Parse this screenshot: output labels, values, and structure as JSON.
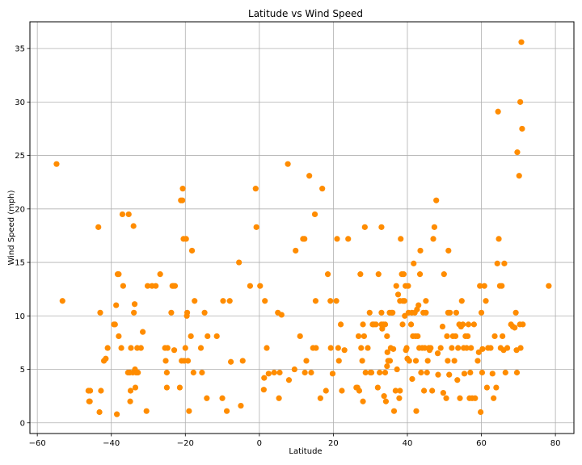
{
  "chart_data": {
    "type": "scatter",
    "title": "Latitude vs Wind Speed",
    "xlabel": "Latitude",
    "ylabel": "Wind Speed (mph)",
    "xlim": [
      -62,
      85
    ],
    "ylim": [
      -1,
      37.5
    ],
    "xticks": [
      -60,
      -40,
      -20,
      0,
      20,
      40,
      60,
      80
    ],
    "yticks": [
      0,
      5,
      10,
      15,
      20,
      25,
      30,
      35
    ],
    "grid": true,
    "marker_color": "#ff8c00",
    "points": [
      [
        -54.8,
        24.2
      ],
      [
        -53.2,
        11.4
      ],
      [
        -46.2,
        3.0
      ],
      [
        -46.0,
        2.0
      ],
      [
        -45.8,
        2.0
      ],
      [
        -45.7,
        3.0
      ],
      [
        -43.5,
        18.3
      ],
      [
        -43.2,
        1.0
      ],
      [
        -43.0,
        10.3
      ],
      [
        -42.8,
        3.0
      ],
      [
        -42.0,
        5.8
      ],
      [
        -41.5,
        6.0
      ],
      [
        -41.0,
        7.0
      ],
      [
        -39.3,
        9.2
      ],
      [
        -39.0,
        9.2
      ],
      [
        -38.7,
        11.0
      ],
      [
        -38.5,
        0.8
      ],
      [
        -38.3,
        13.9
      ],
      [
        -38.0,
        13.9
      ],
      [
        -38.0,
        8.1
      ],
      [
        -37.3,
        7.0
      ],
      [
        -37.0,
        19.5
      ],
      [
        -36.8,
        12.8
      ],
      [
        -35.5,
        4.7
      ],
      [
        -35.3,
        19.5
      ],
      [
        -35.0,
        4.7
      ],
      [
        -34.9,
        2.0
      ],
      [
        -34.8,
        3.0
      ],
      [
        -34.7,
        7.0
      ],
      [
        -34.2,
        4.7
      ],
      [
        -34.0,
        18.4
      ],
      [
        -33.9,
        10.3
      ],
      [
        -33.7,
        11.1
      ],
      [
        -33.6,
        5.0
      ],
      [
        -33.5,
        3.3
      ],
      [
        -33.3,
        4.7
      ],
      [
        -33.0,
        7.0
      ],
      [
        -32.8,
        4.7
      ],
      [
        -32.0,
        7.0
      ],
      [
        -31.5,
        8.5
      ],
      [
        -30.5,
        1.1
      ],
      [
        -30.2,
        12.8
      ],
      [
        -29.0,
        12.8
      ],
      [
        -28.0,
        12.8
      ],
      [
        -26.8,
        13.9
      ],
      [
        -25.5,
        7.0
      ],
      [
        -25.3,
        5.8
      ],
      [
        -25.0,
        4.7
      ],
      [
        -25.0,
        3.3
      ],
      [
        -24.8,
        7.0
      ],
      [
        -23.8,
        10.3
      ],
      [
        -23.5,
        12.8
      ],
      [
        -23.2,
        12.8
      ],
      [
        -23.0,
        6.8
      ],
      [
        -22.8,
        12.8
      ],
      [
        -21.5,
        3.3
      ],
      [
        -21.2,
        20.8
      ],
      [
        -21.0,
        5.8
      ],
      [
        -20.8,
        20.8
      ],
      [
        -20.7,
        21.9
      ],
      [
        -20.5,
        17.2
      ],
      [
        -20.3,
        5.8
      ],
      [
        -20.0,
        7.0
      ],
      [
        -19.8,
        17.2
      ],
      [
        -19.6,
        10.0
      ],
      [
        -19.5,
        10.3
      ],
      [
        -19.3,
        5.8
      ],
      [
        -19.0,
        1.1
      ],
      [
        -18.5,
        8.1
      ],
      [
        -18.2,
        16.1
      ],
      [
        -17.8,
        4.7
      ],
      [
        -17.5,
        11.4
      ],
      [
        -15.8,
        7.0
      ],
      [
        -15.5,
        4.7
      ],
      [
        -14.8,
        10.3
      ],
      [
        -14.2,
        2.3
      ],
      [
        -14.0,
        8.1
      ],
      [
        -11.5,
        8.1
      ],
      [
        -10.0,
        2.3
      ],
      [
        -9.8,
        11.4
      ],
      [
        -8.8,
        1.1
      ],
      [
        -8.0,
        11.4
      ],
      [
        -7.7,
        5.7
      ],
      [
        -5.5,
        15.0
      ],
      [
        -5.0,
        1.6
      ],
      [
        -4.5,
        5.8
      ],
      [
        -2.5,
        12.8
      ],
      [
        -1.0,
        21.9
      ],
      [
        -0.8,
        18.3
      ],
      [
        0.2,
        12.8
      ],
      [
        1.2,
        3.1
      ],
      [
        1.3,
        4.2
      ],
      [
        1.5,
        11.4
      ],
      [
        2.0,
        7.0
      ],
      [
        2.5,
        4.6
      ],
      [
        4.0,
        4.7
      ],
      [
        5.0,
        10.3
      ],
      [
        5.3,
        2.3
      ],
      [
        5.5,
        4.7
      ],
      [
        6.0,
        10.1
      ],
      [
        7.7,
        24.2
      ],
      [
        8.0,
        4.0
      ],
      [
        9.5,
        5.0
      ],
      [
        9.8,
        16.1
      ],
      [
        11.0,
        8.1
      ],
      [
        11.8,
        17.2
      ],
      [
        12.2,
        17.2
      ],
      [
        12.3,
        4.7
      ],
      [
        12.7,
        5.8
      ],
      [
        13.5,
        23.1
      ],
      [
        14.0,
        4.7
      ],
      [
        14.5,
        7.0
      ],
      [
        15.0,
        19.5
      ],
      [
        15.2,
        11.4
      ],
      [
        15.3,
        7.0
      ],
      [
        16.5,
        2.3
      ],
      [
        17.0,
        21.9
      ],
      [
        18.0,
        3.0
      ],
      [
        18.5,
        13.9
      ],
      [
        19.2,
        11.4
      ],
      [
        19.3,
        7.0
      ],
      [
        19.8,
        4.6
      ],
      [
        20.8,
        11.4
      ],
      [
        21.0,
        17.2
      ],
      [
        21.3,
        7.0
      ],
      [
        21.5,
        5.8
      ],
      [
        22.0,
        9.2
      ],
      [
        22.3,
        3.0
      ],
      [
        23.0,
        6.8
      ],
      [
        24.0,
        17.2
      ],
      [
        26.2,
        3.3
      ],
      [
        26.5,
        3.3
      ],
      [
        26.8,
        8.1
      ],
      [
        27.0,
        3.0
      ],
      [
        27.3,
        13.9
      ],
      [
        27.5,
        7.0
      ],
      [
        27.8,
        5.8
      ],
      [
        28.0,
        9.2
      ],
      [
        28.0,
        2.0
      ],
      [
        28.3,
        8.1
      ],
      [
        28.5,
        18.3
      ],
      [
        28.7,
        4.7
      ],
      [
        29.3,
        7.0
      ],
      [
        29.8,
        10.3
      ],
      [
        30.0,
        4.7
      ],
      [
        30.3,
        4.7
      ],
      [
        30.6,
        9.2
      ],
      [
        31.0,
        9.2
      ],
      [
        31.5,
        9.2
      ],
      [
        32.0,
        3.3
      ],
      [
        32.2,
        13.9
      ],
      [
        32.5,
        4.7
      ],
      [
        33.0,
        18.3
      ],
      [
        33.0,
        10.3
      ],
      [
        33.0,
        9.2
      ],
      [
        33.2,
        8.8
      ],
      [
        33.5,
        9.2
      ],
      [
        33.7,
        2.5
      ],
      [
        34.0,
        9.2
      ],
      [
        34.0,
        4.7
      ],
      [
        34.2,
        2.0
      ],
      [
        34.5,
        5.3
      ],
      [
        34.5,
        8.1
      ],
      [
        34.6,
        6.6
      ],
      [
        34.8,
        5.8
      ],
      [
        35.0,
        5.8
      ],
      [
        35.2,
        10.3
      ],
      [
        35.3,
        5.8
      ],
      [
        35.5,
        7.0
      ],
      [
        35.7,
        10.3
      ],
      [
        36.0,
        10.3
      ],
      [
        36.2,
        6.9
      ],
      [
        36.4,
        1.1
      ],
      [
        36.8,
        3.0
      ],
      [
        37.0,
        12.8
      ],
      [
        37.2,
        5.0
      ],
      [
        37.5,
        12.0
      ],
      [
        37.8,
        2.3
      ],
      [
        38.0,
        3.0
      ],
      [
        38.0,
        11.4
      ],
      [
        38.2,
        17.2
      ],
      [
        38.5,
        13.9
      ],
      [
        38.7,
        9.2
      ],
      [
        38.8,
        11.4
      ],
      [
        39.0,
        13.9
      ],
      [
        39.2,
        11.4
      ],
      [
        39.3,
        10.0
      ],
      [
        39.5,
        12.8
      ],
      [
        39.6,
        6.8
      ],
      [
        39.8,
        7.0
      ],
      [
        40.0,
        6.0
      ],
      [
        40.2,
        12.8
      ],
      [
        40.3,
        10.3
      ],
      [
        40.5,
        5.8
      ],
      [
        41.0,
        9.2
      ],
      [
        41.2,
        10.3
      ],
      [
        41.3,
        4.1
      ],
      [
        41.5,
        8.1
      ],
      [
        41.7,
        14.9
      ],
      [
        42.0,
        10.3
      ],
      [
        42.2,
        8.1
      ],
      [
        42.3,
        5.8
      ],
      [
        42.4,
        1.1
      ],
      [
        42.6,
        10.6
      ],
      [
        42.8,
        8.1
      ],
      [
        43.0,
        11.0
      ],
      [
        43.2,
        7.0
      ],
      [
        43.4,
        13.9
      ],
      [
        43.5,
        16.1
      ],
      [
        43.7,
        4.7
      ],
      [
        44.0,
        7.0
      ],
      [
        44.3,
        10.3
      ],
      [
        44.5,
        3.0
      ],
      [
        44.7,
        7.0
      ],
      [
        45.0,
        11.4
      ],
      [
        45.0,
        10.3
      ],
      [
        45.3,
        4.7
      ],
      [
        45.5,
        5.8
      ],
      [
        45.8,
        7.0
      ],
      [
        46.0,
        6.8
      ],
      [
        46.3,
        7.0
      ],
      [
        46.7,
        3.0
      ],
      [
        47.0,
        17.2
      ],
      [
        47.3,
        18.3
      ],
      [
        47.8,
        20.8
      ],
      [
        48.2,
        6.5
      ],
      [
        48.3,
        4.5
      ],
      [
        49.0,
        7.0
      ],
      [
        49.5,
        9.0
      ],
      [
        49.7,
        2.8
      ],
      [
        49.9,
        13.9
      ],
      [
        50.5,
        2.3
      ],
      [
        50.7,
        8.1
      ],
      [
        50.9,
        5.8
      ],
      [
        51.0,
        10.3
      ],
      [
        51.1,
        16.1
      ],
      [
        51.3,
        4.5
      ],
      [
        51.5,
        10.3
      ],
      [
        52.0,
        7.0
      ],
      [
        52.3,
        8.1
      ],
      [
        52.7,
        5.8
      ],
      [
        53.0,
        8.1
      ],
      [
        53.2,
        10.3
      ],
      [
        53.5,
        4.0
      ],
      [
        53.7,
        7.0
      ],
      [
        54.0,
        9.2
      ],
      [
        54.2,
        2.3
      ],
      [
        54.5,
        9.0
      ],
      [
        54.7,
        11.4
      ],
      [
        55.0,
        9.2
      ],
      [
        55.2,
        7.0
      ],
      [
        55.4,
        4.6
      ],
      [
        55.7,
        8.1
      ],
      [
        56.0,
        7.0
      ],
      [
        56.3,
        8.1
      ],
      [
        56.5,
        9.2
      ],
      [
        56.8,
        2.3
      ],
      [
        57.0,
        4.7
      ],
      [
        57.2,
        7.0
      ],
      [
        57.5,
        2.3
      ],
      [
        58.0,
        9.2
      ],
      [
        58.3,
        2.3
      ],
      [
        59.0,
        5.8
      ],
      [
        59.3,
        6.6
      ],
      [
        59.6,
        12.8
      ],
      [
        59.8,
        1.0
      ],
      [
        60.0,
        10.3
      ],
      [
        60.2,
        4.7
      ],
      [
        60.3,
        6.9
      ],
      [
        60.8,
        12.8
      ],
      [
        61.2,
        11.4
      ],
      [
        61.5,
        3.3
      ],
      [
        61.8,
        7.0
      ],
      [
        62.5,
        7.0
      ],
      [
        63.0,
        4.6
      ],
      [
        63.3,
        2.3
      ],
      [
        63.6,
        8.1
      ],
      [
        64.0,
        3.3
      ],
      [
        64.3,
        14.9
      ],
      [
        64.5,
        29.1
      ],
      [
        64.7,
        17.2
      ],
      [
        65.0,
        12.8
      ],
      [
        65.2,
        7.0
      ],
      [
        65.5,
        12.8
      ],
      [
        65.7,
        8.1
      ],
      [
        66.0,
        6.8
      ],
      [
        66.2,
        14.9
      ],
      [
        66.5,
        4.7
      ],
      [
        67.0,
        7.0
      ],
      [
        68.0,
        9.2
      ],
      [
        68.5,
        9.0
      ],
      [
        69.0,
        8.9
      ],
      [
        69.3,
        10.3
      ],
      [
        69.5,
        6.8
      ],
      [
        69.6,
        4.7
      ],
      [
        69.7,
        25.3
      ],
      [
        70.2,
        23.1
      ],
      [
        70.4,
        9.2
      ],
      [
        70.5,
        30.0
      ],
      [
        70.6,
        7.0
      ],
      [
        70.8,
        35.6
      ],
      [
        71.0,
        27.5
      ],
      [
        71.2,
        9.2
      ],
      [
        78.2,
        12.8
      ]
    ]
  }
}
